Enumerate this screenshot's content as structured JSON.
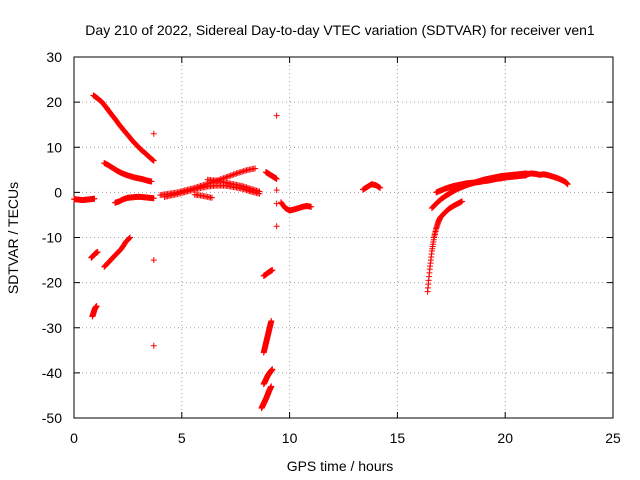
{
  "chart_data": {
    "type": "scatter",
    "title": "Day 210 of 2022, Sidereal Day-to-day VTEC variation (SDTVAR) for receiver ven1",
    "xlabel": "GPS time / hours",
    "ylabel": "SDTVAR / TECUs",
    "xlim": [
      0,
      25
    ],
    "ylim": [
      -50,
      30
    ],
    "xticks": [
      0,
      5,
      10,
      15,
      20,
      25
    ],
    "yticks": [
      30,
      20,
      10,
      0,
      -10,
      -20,
      -30,
      -40,
      -50
    ],
    "xtick_labels": [
      "0",
      "5",
      "10",
      "15",
      "20",
      "25"
    ],
    "ytick_labels": [
      "30",
      "20",
      "10",
      "0",
      "-10",
      "-20",
      "-30",
      "-40",
      "-50"
    ],
    "grid": true,
    "marker": "+",
    "color": "#ff0000",
    "segments": [
      {
        "x": [
          0.0,
          0.2,
          0.4,
          0.6,
          0.8,
          0.95
        ],
        "y": [
          -1.5,
          -1.6,
          -1.7,
          -1.6,
          -1.5,
          -1.4
        ]
      },
      {
        "x": [
          0.9,
          1.1,
          1.3,
          1.5,
          1.7,
          1.9,
          2.1,
          2.3,
          2.5,
          2.7,
          2.9,
          3.1,
          3.3,
          3.5,
          3.7
        ],
        "y": [
          21.5,
          20.8,
          20.0,
          18.8,
          17.5,
          16.3,
          15.0,
          13.8,
          12.7,
          11.5,
          10.5,
          9.5,
          8.7,
          7.8,
          7.0
        ]
      },
      {
        "x": [
          0.8,
          0.9,
          1.0,
          1.1
        ],
        "y": [
          -14.5,
          -14.0,
          -13.5,
          -13.2
        ]
      },
      {
        "x": [
          0.85,
          0.9,
          0.95,
          1.0,
          1.05
        ],
        "y": [
          -27.5,
          -26.8,
          -26.0,
          -25.5,
          -25.2
        ]
      },
      {
        "x": [
          1.4,
          1.6,
          1.8,
          2.0,
          2.2,
          2.4,
          2.6
        ],
        "y": [
          -16.5,
          -15.5,
          -14.5,
          -13.5,
          -12.5,
          -11.0,
          -10.0
        ]
      },
      {
        "x": [
          1.4,
          1.6,
          1.8,
          2.0,
          2.2,
          2.4,
          2.6,
          2.8,
          3.0,
          3.2,
          3.4,
          3.6
        ],
        "y": [
          6.5,
          6.0,
          5.4,
          4.8,
          4.3,
          3.9,
          3.6,
          3.3,
          3.1,
          2.9,
          2.6,
          2.4
        ]
      },
      {
        "x": [
          1.9,
          2.1,
          2.3,
          2.5,
          2.7,
          2.9,
          3.1,
          3.3,
          3.5,
          3.7
        ],
        "y": [
          -2.3,
          -2.0,
          -1.5,
          -1.2,
          -1.1,
          -1.0,
          -1.0,
          -1.1,
          -1.2,
          -1.3
        ]
      },
      {
        "x": [
          3.7,
          3.7,
          3.7
        ],
        "y": [
          13.0,
          -15.0,
          -34.0
        ]
      },
      {
        "x": [
          4.0,
          4.4,
          4.8,
          5.2,
          5.6,
          6.0,
          6.4,
          6.8,
          7.2,
          7.6,
          8.0,
          8.4
        ],
        "y": [
          -0.6,
          -0.3,
          0.0,
          0.5,
          1.0,
          1.6,
          2.2,
          2.9,
          3.6,
          4.3,
          4.9,
          5.3
        ]
      },
      {
        "x": [
          4.2,
          4.6,
          5.0,
          5.4,
          5.8,
          6.2,
          6.6,
          7.0,
          7.4,
          7.8,
          8.2,
          8.6
        ],
        "y": [
          -1.0,
          -0.6,
          -0.1,
          0.4,
          0.9,
          1.3,
          1.5,
          1.5,
          1.2,
          0.8,
          0.2,
          -0.3
        ]
      },
      {
        "x": [
          5.6,
          6.0,
          6.4
        ],
        "y": [
          -0.5,
          -0.8,
          -1.2
        ]
      },
      {
        "x": [
          6.2,
          6.6,
          7.0,
          7.4,
          7.8,
          8.2,
          8.6
        ],
        "y": [
          2.8,
          2.6,
          2.2,
          1.8,
          1.4,
          0.8,
          0.2
        ]
      },
      {
        "x": [
          8.9,
          9.0,
          9.1,
          9.2,
          9.3,
          9.4
        ],
        "y": [
          4.5,
          4.2,
          3.9,
          3.6,
          3.3,
          3.0
        ]
      },
      {
        "x": [
          8.8,
          8.9,
          9.0,
          9.1,
          9.2
        ],
        "y": [
          -18.5,
          -18.2,
          -17.8,
          -17.5,
          -17.2
        ]
      },
      {
        "x": [
          8.8,
          8.85,
          8.9,
          8.95,
          9.0,
          9.05,
          9.1,
          9.15
        ],
        "y": [
          -35.5,
          -34.5,
          -33.5,
          -32.5,
          -31.5,
          -30.5,
          -29.5,
          -28.5
        ]
      },
      {
        "x": [
          8.8,
          8.85,
          8.9,
          8.95,
          9.0,
          9.05,
          9.1,
          9.15,
          9.2
        ],
        "y": [
          -42.5,
          -42.0,
          -41.5,
          -41.0,
          -40.5,
          -40.2,
          -39.8,
          -39.5,
          -39.2
        ]
      },
      {
        "x": [
          8.7,
          8.75,
          8.8,
          8.85,
          8.9,
          8.95,
          9.0,
          9.05,
          9.1,
          9.15
        ],
        "y": [
          -47.8,
          -47.3,
          -46.8,
          -46.3,
          -45.8,
          -45.2,
          -44.6,
          -44.0,
          -43.5,
          -43.0
        ]
      },
      {
        "x": [
          9.4,
          9.4,
          9.4,
          9.4
        ],
        "y": [
          17.0,
          0.5,
          -2.5,
          -7.5
        ]
      },
      {
        "x": [
          9.6,
          9.8,
          10.0,
          10.2,
          10.4,
          10.6,
          10.8,
          11.0
        ],
        "y": [
          -2.2,
          -3.5,
          -4.0,
          -3.8,
          -3.5,
          -3.2,
          -3.0,
          -3.2
        ]
      },
      {
        "x": [
          13.4,
          13.6,
          13.8,
          14.0,
          14.2
        ],
        "y": [
          0.6,
          1.2,
          1.8,
          1.6,
          1.0
        ]
      },
      {
        "x": [
          16.4,
          16.5,
          16.6,
          16.7,
          16.8,
          16.9,
          17.0,
          17.2,
          17.4,
          17.6,
          17.8,
          18.0
        ],
        "y": [
          -22.0,
          -17.0,
          -13.0,
          -10.0,
          -8.0,
          -6.5,
          -5.5,
          -4.5,
          -3.6,
          -3.0,
          -2.5,
          -2.0
        ]
      },
      {
        "x": [
          16.6,
          16.8,
          17.0,
          17.2,
          17.4,
          17.6,
          17.8,
          18.0,
          18.2,
          18.4,
          18.6,
          18.8,
          19.0,
          19.2,
          19.4,
          19.6,
          19.8,
          20.0,
          20.2,
          20.4,
          20.6,
          20.8,
          21.0
        ],
        "y": [
          -3.5,
          -2.5,
          -1.6,
          -0.9,
          -0.3,
          0.3,
          0.8,
          1.2,
          1.6,
          1.9,
          2.2,
          2.5,
          2.8,
          3.0,
          3.2,
          3.4,
          3.6,
          3.7,
          3.8,
          3.9,
          4.0,
          4.1,
          4.2
        ]
      },
      {
        "x": [
          16.8,
          17.0,
          17.2,
          17.4,
          17.6,
          17.8,
          18.0,
          18.2,
          18.4,
          18.6,
          18.8,
          19.0,
          19.2,
          19.4,
          19.6,
          19.8,
          20.0,
          20.2,
          20.4,
          20.6,
          20.8,
          21.0
        ],
        "y": [
          0.0,
          0.4,
          0.8,
          1.1,
          1.4,
          1.6,
          1.8,
          2.0,
          2.1,
          2.2,
          2.3,
          2.5,
          2.6,
          2.8,
          3.0,
          3.1,
          3.3,
          3.4,
          3.5,
          3.6,
          3.7,
          3.8
        ]
      },
      {
        "x": [
          21.0,
          21.2,
          21.4,
          21.6,
          21.8,
          22.0,
          22.2,
          22.4,
          22.6,
          22.8,
          22.9
        ],
        "y": [
          4.0,
          4.2,
          4.1,
          3.9,
          4.0,
          3.8,
          3.5,
          3.2,
          2.8,
          2.3,
          1.8
        ]
      }
    ]
  }
}
